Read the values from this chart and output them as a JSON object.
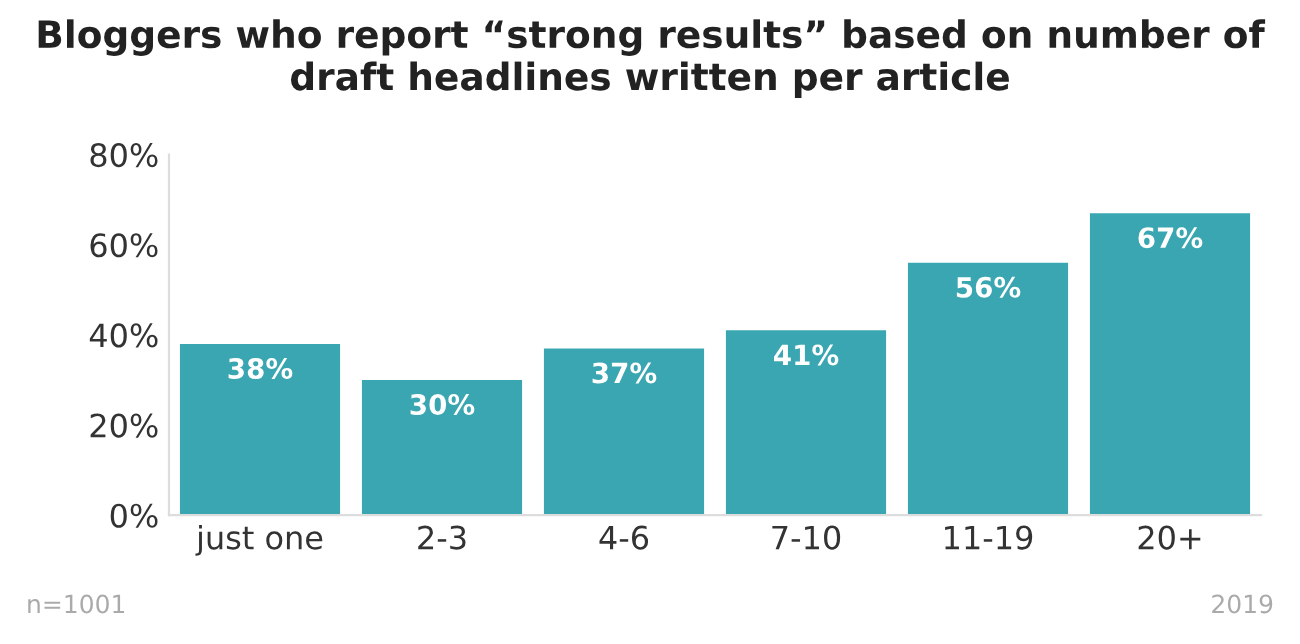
{
  "chart_data": {
    "type": "bar",
    "title": "Bloggers who report “strong results” based on number of draft headlines written per article",
    "categories": [
      "just one",
      "2-3",
      "4-6",
      "7-10",
      "11-19",
      "20+"
    ],
    "values": [
      38,
      30,
      37,
      41,
      56,
      67
    ],
    "value_labels": [
      "38%",
      "30%",
      "37%",
      "41%",
      "56%",
      "67%"
    ],
    "color": "#3aa6b1",
    "ylim": [
      0,
      80
    ],
    "yticks": [
      {
        "value": 0,
        "label": "0%"
      },
      {
        "value": 20,
        "label": "20%"
      },
      {
        "value": 40,
        "label": "40%"
      },
      {
        "value": 60,
        "label": "60%"
      },
      {
        "value": 80,
        "label": "80%"
      }
    ],
    "annotations": [
      "n=1001",
      "2019"
    ]
  }
}
